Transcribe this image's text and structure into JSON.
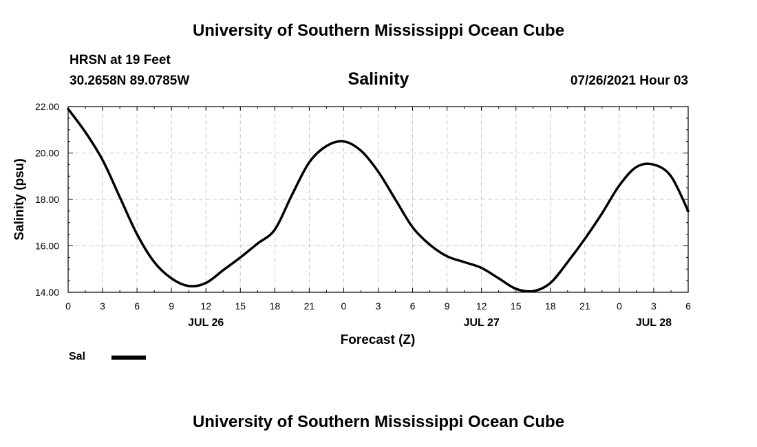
{
  "header": {
    "title": "University of Southern Mississippi Ocean Cube",
    "station": "HRSN at 19 Feet",
    "coordinates": "30.2658N  89.0785W",
    "datetime": "07/26/2021 Hour 03"
  },
  "footer": {
    "title": "University of Southern Mississippi Ocean Cube"
  },
  "legend": {
    "label": "Sal",
    "color": "#000000"
  },
  "chart_data": {
    "type": "line",
    "title": "Salinity",
    "xlabel": "Forecast (Z)",
    "ylabel": "Salinity (psu)",
    "x_unit": "hours from 07/26 00Z",
    "xlim": [
      0,
      54
    ],
    "ylim": [
      14,
      22
    ],
    "grid": true,
    "legend_position": "bottom-left",
    "x_ticks": [
      0,
      3,
      6,
      9,
      12,
      15,
      18,
      21,
      24,
      27,
      30,
      33,
      36,
      39,
      42,
      45,
      48,
      51,
      54
    ],
    "x_tick_labels": [
      "0",
      "3",
      "6",
      "9",
      "12",
      "15",
      "18",
      "21",
      "0",
      "3",
      "6",
      "9",
      "12",
      "15",
      "18",
      "21",
      "0",
      "3",
      "6"
    ],
    "y_ticks": [
      14,
      16,
      18,
      20,
      22
    ],
    "y_tick_labels": [
      "14.00",
      "16.00",
      "18.00",
      "20.00",
      "22.00"
    ],
    "date_labels": [
      {
        "x": 12,
        "label": "JUL 26"
      },
      {
        "x": 36,
        "label": "JUL 27"
      },
      {
        "x": 51,
        "label": "JUL 28"
      }
    ],
    "series": [
      {
        "name": "Sal",
        "color": "#000000",
        "x": [
          0,
          1.5,
          3,
          4.5,
          6,
          7.5,
          9,
          10.5,
          12,
          13.5,
          15,
          16.5,
          18,
          19.5,
          21,
          22.5,
          24,
          25.5,
          27,
          28.5,
          30,
          31.5,
          33,
          34.5,
          36,
          37.5,
          39,
          40.5,
          42,
          43.5,
          45,
          46.5,
          48,
          49.5,
          51,
          52.5,
          54
        ],
        "values": [
          21.9,
          20.9,
          19.7,
          18.1,
          16.5,
          15.3,
          14.6,
          14.27,
          14.4,
          14.95,
          15.5,
          16.1,
          16.7,
          18.2,
          19.6,
          20.3,
          20.5,
          20.1,
          19.2,
          18.0,
          16.8,
          16.05,
          15.55,
          15.3,
          15.05,
          14.6,
          14.15,
          14.05,
          14.4,
          15.3,
          16.3,
          17.4,
          18.6,
          19.4,
          19.5,
          19.0,
          17.5
        ]
      }
    ]
  }
}
